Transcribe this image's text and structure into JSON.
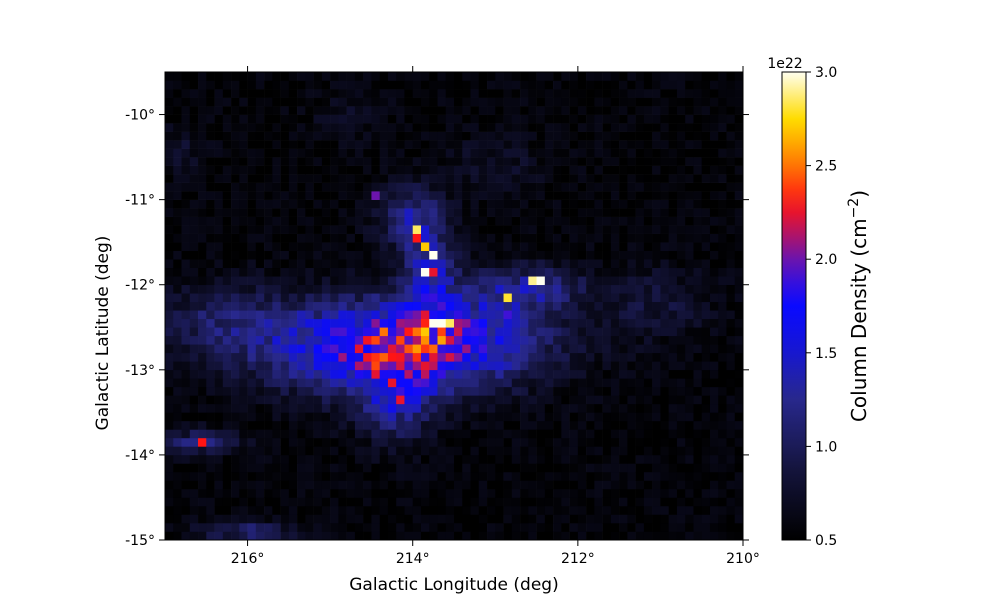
{
  "chart_data": {
    "type": "heatmap",
    "title": "",
    "xlabel": "Galactic Longitude (deg)",
    "ylabel": "Galactic Latitude (deg)",
    "xlim": [
      217.0,
      210.0
    ],
    "ylim": [
      -15.0,
      -9.5
    ],
    "x_ticks": [
      {
        "value": 216,
        "label": "216°"
      },
      {
        "value": 214,
        "label": "214°"
      },
      {
        "value": 212,
        "label": "212°"
      },
      {
        "value": 210,
        "label": "210°"
      }
    ],
    "y_ticks": [
      {
        "value": -10,
        "label": "-10°"
      },
      {
        "value": -11,
        "label": "-11°"
      },
      {
        "value": -12,
        "label": "-12°"
      },
      {
        "value": -13,
        "label": "-13°"
      },
      {
        "value": -14,
        "label": "-14°"
      },
      {
        "value": -15,
        "label": "-15°"
      }
    ],
    "pixel_size_deg": 0.1,
    "grid": false,
    "colorbar": {
      "label": "Column Density (cm",
      "label_sup": "−2",
      "label_close": ")",
      "exponent": "1e22",
      "vmin": 0.5,
      "vmax": 3.0,
      "ticks": [
        "0.5",
        "1.0",
        "1.5",
        "2.0",
        "2.5",
        "3.0"
      ],
      "colormap": "gist_stern-like (black → dark blue → blue → purple → red → orange → yellow → white)"
    },
    "features": [
      {
        "name": "central dense core",
        "l": 213.7,
        "b": -12.5,
        "peak": 3.0
      },
      {
        "name": "north filament knot",
        "l": 213.8,
        "b": -11.8,
        "peak": 3.0
      },
      {
        "name": "north filament knot",
        "l": 214.0,
        "b": -11.3,
        "peak": 2.9
      },
      {
        "name": "eastern knot",
        "l": 212.5,
        "b": -12.0,
        "peak": 2.9
      },
      {
        "name": "south-east knot",
        "l": 214.2,
        "b": -13.3,
        "peak": 2.3
      },
      {
        "name": "south-western knot",
        "l": 216.5,
        "b": -13.8,
        "peak": 2.3
      }
    ]
  }
}
